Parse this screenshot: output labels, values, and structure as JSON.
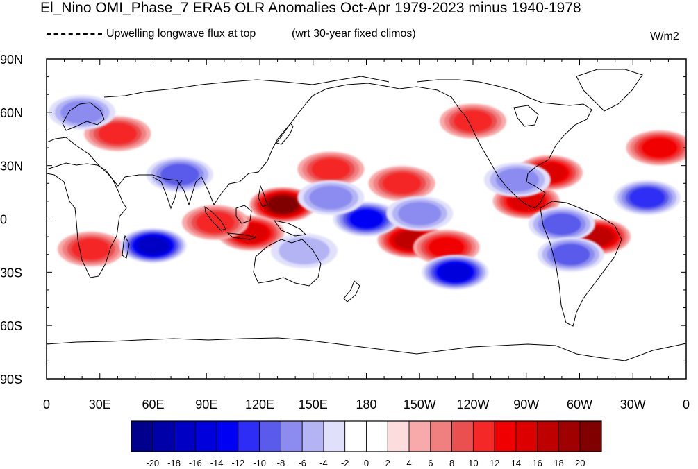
{
  "title": "El_Nino OMI_Phase_7 ERA5 OLR Anomalies Oct-Apr 1979-2023 minus 1940-1978",
  "legend_text": "Upwelling longwave flux at top",
  "subtitle_right": "(wrt 30-year fixed climos)",
  "units": "W/m2",
  "lat_labels": [
    "90N",
    "60N",
    "30N",
    "0",
    "30S",
    "60S",
    "90S"
  ],
  "lon_labels": [
    "0",
    "30E",
    "60E",
    "90E",
    "120E",
    "150E",
    "180",
    "150W",
    "120W",
    "90W",
    "60W",
    "30W",
    "0"
  ],
  "colorbar": {
    "labels": [
      "-20",
      "-18",
      "-16",
      "-14",
      "-12",
      "-10",
      "-8",
      "-6",
      "-4",
      "-2",
      "0",
      "2",
      "4",
      "6",
      "8",
      "10",
      "12",
      "14",
      "16",
      "18",
      "20"
    ],
    "colors": [
      "#00008c",
      "#0000a8",
      "#0000c4",
      "#0000dc",
      "#0000f5",
      "#2d2df5",
      "#5a5aeb",
      "#8c8cf0",
      "#b4b4f5",
      "#e0e0fa",
      "#ffffff",
      "#ffffff",
      "#fcdcdc",
      "#f8aaaa",
      "#f08080",
      "#eb5050",
      "#f52828",
      "#f00000",
      "#dc0000",
      "#be0000",
      "#a00000",
      "#800000"
    ]
  },
  "map_anomalies": [
    {
      "lon": 133,
      "lat": 8,
      "value": 20
    },
    {
      "lon": 115,
      "lat": -8,
      "value": 14
    },
    {
      "lon": 95,
      "lat": -2,
      "value": 10
    },
    {
      "lon": 160,
      "lat": 28,
      "value": 10
    },
    {
      "lon": 205,
      "lat": -12,
      "value": 16
    },
    {
      "lon": 225,
      "lat": -16,
      "value": 12
    },
    {
      "lon": 200,
      "lat": 20,
      "value": 10
    },
    {
      "lon": 270,
      "lat": 10,
      "value": 14
    },
    {
      "lon": 283,
      "lat": 26,
      "value": 14
    },
    {
      "lon": 310,
      "lat": -10,
      "value": 16
    },
    {
      "lon": 25,
      "lat": -17,
      "value": 10
    },
    {
      "lon": 40,
      "lat": 48,
      "value": 10
    },
    {
      "lon": 345,
      "lat": 40,
      "value": 12
    },
    {
      "lon": 240,
      "lat": 55,
      "value": 10
    },
    {
      "lon": 60,
      "lat": -15,
      "value": -18
    },
    {
      "lon": 75,
      "lat": 25,
      "value": -10
    },
    {
      "lon": 180,
      "lat": 0,
      "value": -14
    },
    {
      "lon": 160,
      "lat": 12,
      "value": -8
    },
    {
      "lon": 210,
      "lat": 3,
      "value": -8
    },
    {
      "lon": 230,
      "lat": -30,
      "value": -16
    },
    {
      "lon": 290,
      "lat": -3,
      "value": -10
    },
    {
      "lon": 295,
      "lat": -20,
      "value": -10
    },
    {
      "lon": 338,
      "lat": 12,
      "value": -12
    },
    {
      "lon": 265,
      "lat": 22,
      "value": -8
    },
    {
      "lon": 20,
      "lat": 60,
      "value": -8
    },
    {
      "lon": 145,
      "lat": -18,
      "value": -6
    }
  ]
}
